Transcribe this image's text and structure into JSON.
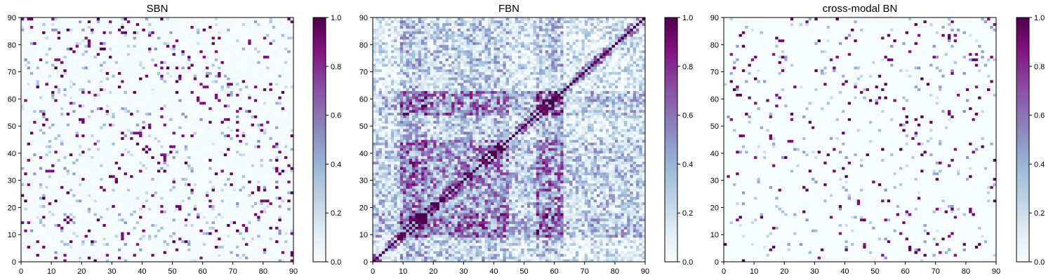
{
  "colors": {
    "colormap": [
      "#f7fcfd",
      "#e0ecf4",
      "#bfd3e6",
      "#9ebcda",
      "#8c96c6",
      "#8c6bb1",
      "#88419d",
      "#810f7c",
      "#4d004b"
    ],
    "frame": "#000000",
    "background": "#ffffff"
  },
  "chart_data": [
    {
      "type": "heatmap",
      "title": "SBN",
      "xlabel": "",
      "ylabel": "",
      "xlim": [
        0,
        90
      ],
      "ylim": [
        0,
        90
      ],
      "xticks": [
        "0",
        "10",
        "20",
        "30",
        "40",
        "50",
        "60",
        "70",
        "80",
        "90"
      ],
      "yticks": [
        "0",
        "10",
        "20",
        "30",
        "40",
        "50",
        "60",
        "70",
        "80",
        "90"
      ],
      "colorbar": {
        "range": [
          0.0,
          1.0
        ],
        "ticks": [
          "0.0",
          "0.2",
          "0.4",
          "0.6",
          "0.8",
          "1.0"
        ]
      },
      "matrix_size": 90,
      "matrix_description": "sparse structural brain network; mostly near 0 with scattered strong (~1.0) connections and faint blocks along the diagonal",
      "background_value": 0.02,
      "density": 0.04,
      "diagonal_value": 0.0,
      "seed": 11
    },
    {
      "type": "heatmap",
      "title": "FBN",
      "xlabel": "",
      "ylabel": "",
      "xlim": [
        0,
        90
      ],
      "ylim": [
        0,
        90
      ],
      "xticks": [
        "0",
        "10",
        "20",
        "30",
        "40",
        "50",
        "60",
        "70",
        "80",
        "90"
      ],
      "yticks": [
        "0",
        "10",
        "20",
        "30",
        "40",
        "50",
        "60",
        "70",
        "80",
        "90"
      ],
      "colorbar": {
        "range": [
          0.0,
          1.0
        ],
        "ticks": [
          "0.0",
          "0.2",
          "0.4",
          "0.6",
          "0.8",
          "1.0"
        ]
      },
      "matrix_size": 90,
      "matrix_description": "dense functional brain network; widespread moderate values 0.1-0.9 with strong block structure and near-1.0 diagonal band",
      "background_value": 0.25,
      "density": 0.55,
      "diagonal_value": 1.0,
      "seed": 29
    },
    {
      "type": "heatmap",
      "title": "cross-modal BN",
      "xlabel": "",
      "ylabel": "",
      "xlim": [
        0,
        90
      ],
      "ylim": [
        0,
        90
      ],
      "xticks": [
        "0",
        "10",
        "20",
        "30",
        "40",
        "50",
        "60",
        "70",
        "80",
        "90"
      ],
      "yticks": [
        "0",
        "10",
        "20",
        "30",
        "40",
        "50",
        "60",
        "70",
        "80",
        "90"
      ],
      "colorbar": {
        "range": [
          0.0,
          1.0
        ],
        "ticks": [
          "0.0",
          "0.2",
          "0.4",
          "0.6",
          "0.8",
          "1.0"
        ]
      },
      "matrix_size": 90,
      "matrix_description": "very sparse cross-modal network; background near 0 with isolated strong (~1.0) connections",
      "background_value": 0.01,
      "density": 0.025,
      "diagonal_value": 0.0,
      "seed": 47
    }
  ]
}
